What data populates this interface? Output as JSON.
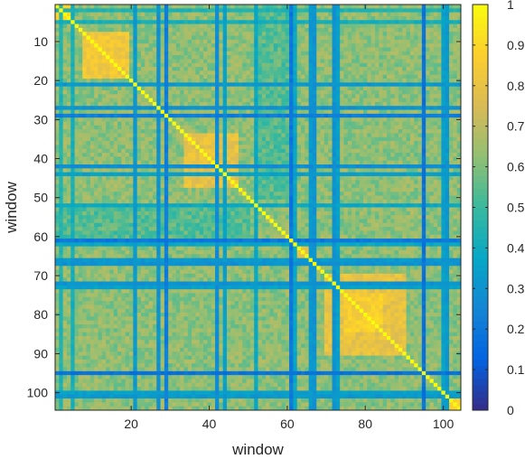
{
  "chart_data": {
    "type": "heatmap",
    "title": "",
    "xlabel": "window",
    "ylabel": "window",
    "n": 104,
    "xlim": [
      0.5,
      104.5
    ],
    "ylim": [
      0.5,
      104.5
    ],
    "x_ticks": [
      20,
      40,
      60,
      80,
      100
    ],
    "y_ticks": [
      10,
      20,
      30,
      40,
      50,
      60,
      70,
      80,
      90,
      100
    ],
    "colorbar": {
      "min": 0,
      "max": 1,
      "ticks": [
        0,
        0.1,
        0.2,
        0.3,
        0.4,
        0.5,
        0.6,
        0.7,
        0.8,
        0.9,
        1
      ],
      "tick_labels": [
        "0",
        "0.1",
        "0.2",
        "0.3",
        "0.4",
        "0.5",
        "0.6",
        "0.7",
        "0.8",
        "0.9",
        "1"
      ],
      "colormap": "parula"
    },
    "diagonal_value": 1.0,
    "low_correlation_windows": [
      {
        "index": 2,
        "value": 0.45
      },
      {
        "index": 5,
        "value": 0.42
      },
      {
        "index": 21,
        "value": 0.32
      },
      {
        "index": 27,
        "value": 0.3
      },
      {
        "index": 29,
        "value": 0.22
      },
      {
        "index": 42,
        "value": 0.28
      },
      {
        "index": 44,
        "value": 0.35
      },
      {
        "index": 52,
        "value": 0.38
      },
      {
        "index": 61,
        "value": 0.2
      },
      {
        "index": 62,
        "value": 0.38
      },
      {
        "index": 66,
        "value": 0.32
      },
      {
        "index": 67,
        "value": 0.3
      },
      {
        "index": 72,
        "value": 0.3
      },
      {
        "index": 73,
        "value": 0.35
      },
      {
        "index": 95,
        "value": 0.18
      },
      {
        "index": 100,
        "value": 0.35
      },
      {
        "index": 101,
        "value": 0.32
      }
    ],
    "high_correlation_blocks": [
      {
        "from": 1,
        "to": 4,
        "value": 0.9
      },
      {
        "from": 8,
        "to": 19,
        "value": 0.83
      },
      {
        "from": 34,
        "to": 47,
        "value": 0.8
      },
      {
        "from": 62,
        "to": 66,
        "value": 0.82
      },
      {
        "from": 70,
        "to": 90,
        "value": 0.8
      },
      {
        "from": 75,
        "to": 84,
        "value": 0.86
      },
      {
        "from": 102,
        "to": 104,
        "value": 0.88
      }
    ]
  }
}
